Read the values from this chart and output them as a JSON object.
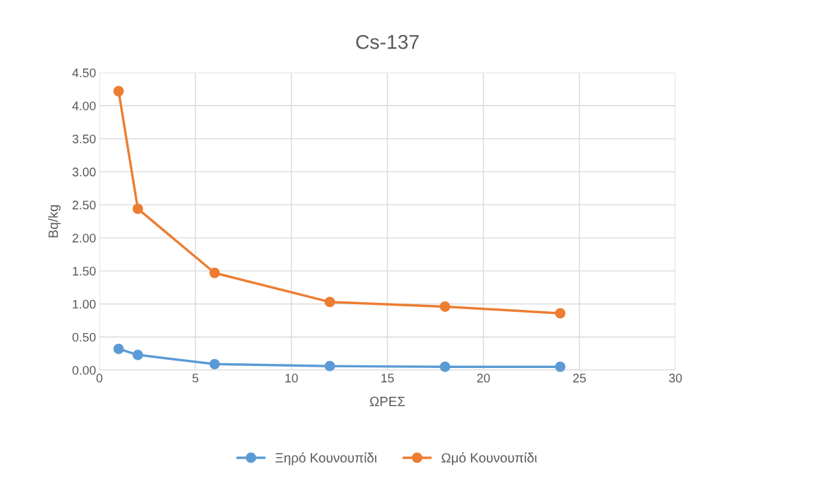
{
  "chart_data": {
    "type": "line",
    "title": "Cs-137",
    "xlabel": "ΩΡΕΣ",
    "ylabel": "Bq/kg",
    "x": [
      1,
      2,
      6,
      12,
      18,
      24
    ],
    "series": [
      {
        "name": "Ξηρό Κουνουπίδι",
        "color": "#5b9bd5",
        "values": [
          0.32,
          0.23,
          0.09,
          0.06,
          0.05,
          0.05
        ]
      },
      {
        "name": "Ωμό Κουνουπίδι",
        "color": "#ed7d31",
        "values": [
          4.22,
          2.44,
          1.47,
          1.03,
          0.96,
          0.86
        ]
      }
    ],
    "xlim": [
      0,
      30
    ],
    "xticks": [
      0,
      5,
      10,
      15,
      20,
      25,
      30
    ],
    "ylim": [
      0,
      4.5
    ],
    "yticks": [
      {
        "value": 0,
        "label": "0.00"
      },
      {
        "value": 0.5,
        "label": "0.50"
      },
      {
        "value": 1,
        "label": "1.00"
      },
      {
        "value": 1.5,
        "label": "1.50"
      },
      {
        "value": 2,
        "label": "2.00"
      },
      {
        "value": 2.5,
        "label": "2.50"
      },
      {
        "value": 3,
        "label": "3.00"
      },
      {
        "value": 3.5,
        "label": "3.50"
      },
      {
        "value": 4,
        "label": "4.00"
      },
      {
        "value": 4.5,
        "label": "4.50"
      }
    ],
    "grid": true,
    "legend": "bottom",
    "marker": "circle",
    "line_style": "solid"
  }
}
